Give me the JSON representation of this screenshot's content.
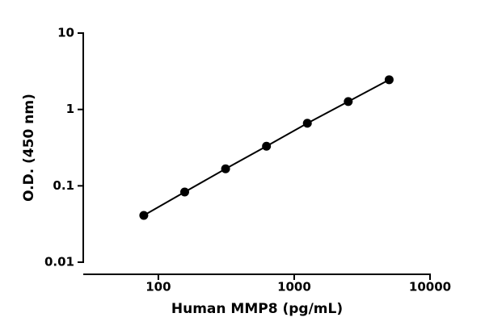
{
  "chart_data": {
    "type": "scatter",
    "xlabel": "Human MMP8 (pg/mL)",
    "ylabel": "O.D. (450 nm)",
    "xscale": "log",
    "yscale": "log",
    "x": [
      78.125,
      156.25,
      312.5,
      625,
      1250,
      2500,
      5000
    ],
    "series": [
      {
        "color": "#000000",
        "values": [
          0.041,
          0.083,
          0.167,
          0.33,
          0.66,
          1.27,
          2.45
        ]
      }
    ],
    "connect": true,
    "xlim": [
      28,
      10000
    ],
    "xticks": [
      100,
      1000,
      10000
    ],
    "ylim": [
      0.01,
      10
    ],
    "yticks": [
      0.01,
      0.1,
      1,
      10
    ]
  }
}
